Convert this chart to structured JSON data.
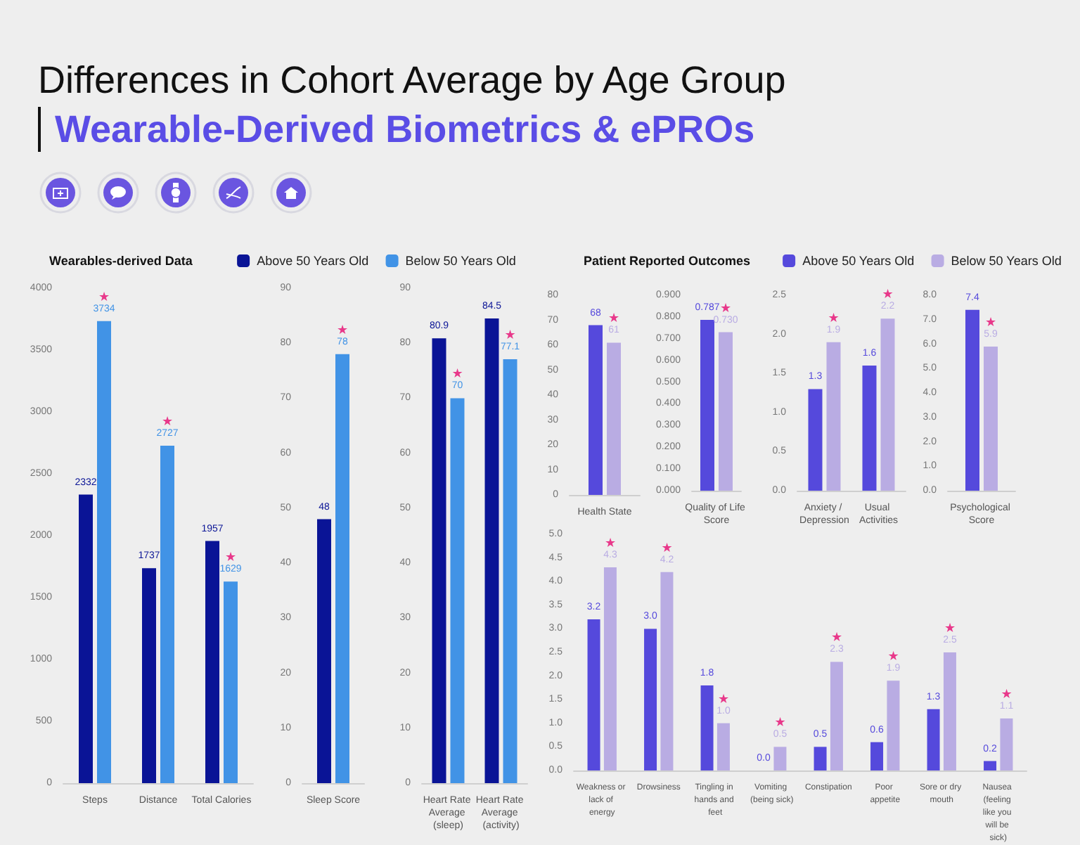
{
  "chart_data": [
    {
      "type": "bar",
      "title": "Differences in Cohort Average by Age Group",
      "subtitle": "Wearable-Derived Biometrics & ePROs",
      "legend_title": "Wearables-derived Data",
      "legend": "top right",
      "categories": [
        "Steps",
        "Distance",
        "Total Calories"
      ],
      "series": [
        {
          "name": "Above 50 Years Old",
          "color": "#0a1496",
          "values": [
            2332,
            1737,
            1957
          ]
        },
        {
          "name": "Below 50 Years Old",
          "color": "#4193e6",
          "values": [
            3734,
            2727,
            1629
          ]
        }
      ],
      "ylim": [
        0,
        4000
      ],
      "yticks": [
        0,
        500,
        1000,
        1500,
        2000,
        2500,
        3000,
        3500,
        4000
      ],
      "data_labels": true,
      "annotations": [
        {
          "text": "★",
          "x": "Steps",
          "y": 3734
        },
        {
          "text": "★",
          "x": "Distance",
          "y": 2727
        },
        {
          "text": "★",
          "x": "Total Calories",
          "y": 1629
        }
      ]
    },
    {
      "type": "bar",
      "categories": [
        "Sleep Score"
      ],
      "series": [
        {
          "color": "#0a1496",
          "values": [
            48
          ]
        },
        {
          "color": "#4193e6",
          "values": [
            78
          ]
        }
      ],
      "ylim": [
        0,
        90
      ],
      "yticks": [
        0,
        10,
        20,
        30,
        40,
        50,
        60,
        70,
        80,
        90
      ],
      "data_labels": true,
      "annotations": [
        {
          "text": "★",
          "x": "Sleep Score",
          "y": 78
        }
      ]
    },
    {
      "type": "bar",
      "categories": [
        "Heart Rate Average (sleep)",
        "Heart Rate Average (activity)"
      ],
      "series": [
        {
          "color": "#0a1496",
          "values": [
            80.9,
            84.5
          ]
        },
        {
          "color": "#4193e6",
          "values": [
            70,
            77.1
          ]
        }
      ],
      "ylim": [
        0,
        90
      ],
      "yticks": [
        0,
        10,
        20,
        30,
        40,
        50,
        60,
        70,
        80,
        90
      ],
      "data_labels": true,
      "annotations": [
        {
          "text": "★",
          "x": "Heart Rate Average (sleep)",
          "y": 70
        },
        {
          "text": "★",
          "x": "Heart Rate Average (activity)",
          "y": 77.1
        }
      ]
    },
    {
      "type": "bar",
      "legend_title": "Patient Reported Outcomes",
      "legend": "top right",
      "categories": [
        "Health State"
      ],
      "series": [
        {
          "name": "Above 50 Years Old",
          "color": "#5549dc",
          "values": [
            68
          ]
        },
        {
          "name": "Below 50 Years Old",
          "color": "#b9ace3",
          "values": [
            61
          ]
        }
      ],
      "ylim": [
        0,
        80
      ],
      "yticks": [
        0,
        10,
        20,
        30,
        40,
        50,
        60,
        70,
        80
      ],
      "data_labels": true,
      "annotations": [
        {
          "text": "★",
          "x": "Health State",
          "y": 61
        }
      ]
    },
    {
      "type": "bar",
      "categories": [
        "Quality of Life Score"
      ],
      "series": [
        {
          "color": "#5549dc",
          "values": [
            0.787
          ],
          "value_labels": [
            "0.787"
          ]
        },
        {
          "color": "#b9ace3",
          "values": [
            0.73
          ],
          "value_labels": [
            "0.730"
          ]
        }
      ],
      "ylim": [
        0,
        0.9
      ],
      "yticks": [
        {
          "value": 0,
          "label": "0.000"
        },
        {
          "value": 0.1,
          "label": "0.100"
        },
        {
          "value": 0.2,
          "label": "0.200"
        },
        {
          "value": 0.3,
          "label": "0.300"
        },
        {
          "value": 0.4,
          "label": "0.400"
        },
        {
          "value": 0.5,
          "label": "0.500"
        },
        {
          "value": 0.6,
          "label": "0.600"
        },
        {
          "value": 0.7,
          "label": "0.700"
        },
        {
          "value": 0.8,
          "label": "0.800"
        },
        {
          "value": 0.9,
          "label": "0.900"
        }
      ],
      "annotations": [
        {
          "text": "★",
          "x": "Quality of Life Score",
          "y": 0.73
        }
      ]
    },
    {
      "type": "bar",
      "categories": [
        "Anxiety / Depression",
        "Usual Activities"
      ],
      "series": [
        {
          "color": "#5549dc",
          "values": [
            1.3,
            1.6
          ],
          "value_labels": [
            "1.3",
            "1.6"
          ]
        },
        {
          "color": "#b9ace3",
          "values": [
            1.9,
            2.2
          ],
          "value_labels": [
            "1.9",
            "2.2"
          ]
        }
      ],
      "ylim": [
        0,
        2.5
      ],
      "yticks": [
        {
          "value": 0,
          "label": "0.0"
        },
        0.5,
        {
          "value": 1,
          "label": "1.0"
        },
        1.5,
        {
          "value": 2,
          "label": "2.0"
        },
        2.5
      ],
      "annotations": [
        {
          "text": "★",
          "x": "Anxiety / Depression",
          "y": 1.9
        },
        {
          "text": "★",
          "x": "Usual Activities",
          "y": 2.2
        }
      ]
    },
    {
      "type": "bar",
      "categories": [
        "Psychological Score"
      ],
      "series": [
        {
          "color": "#5549dc",
          "values": [
            7.4
          ],
          "value_labels": [
            "7.4"
          ]
        },
        {
          "color": "#b9ace3",
          "values": [
            5.9
          ],
          "value_labels": [
            "5.9"
          ]
        }
      ],
      "ylim": [
        0,
        8
      ],
      "yticks": [
        {
          "value": 0,
          "label": "0.0"
        },
        {
          "value": 1,
          "label": "1.0"
        },
        {
          "value": 2,
          "label": "2.0"
        },
        {
          "value": 3,
          "label": "3.0"
        },
        {
          "value": 4,
          "label": "4.0"
        },
        {
          "value": 5,
          "label": "5.0"
        },
        {
          "value": 6,
          "label": "6.0"
        },
        {
          "value": 7,
          "label": "7.0"
        },
        {
          "value": 8,
          "label": "8.0"
        }
      ],
      "annotations": [
        {
          "text": "★",
          "x": "Psychological Score",
          "y": 5.9
        }
      ]
    },
    {
      "type": "bar",
      "categories": [
        "Weakness or lack of energy",
        "Drowsiness",
        "Tingling in hands and feet",
        "Vomiting (being sick)",
        "Constipation",
        "Poor appetite",
        "Sore or dry mouth",
        "Nausea (feeling like you will be sick)"
      ],
      "series": [
        {
          "color": "#5549dc",
          "values": [
            3.2,
            3.0,
            1.8,
            0.0,
            0.5,
            0.6,
            1.3,
            0.2
          ],
          "value_labels": [
            "3.2",
            "3.0",
            "1.8",
            "0.0",
            "0.5",
            "0.6",
            "1.3",
            "0.2"
          ]
        },
        {
          "color": "#b9ace3",
          "values": [
            4.3,
            4.2,
            1.0,
            0.5,
            2.3,
            1.9,
            2.5,
            1.1
          ],
          "value_labels": [
            "4.3",
            "4.2",
            "1.0",
            "0.5",
            "2.3",
            "1.9",
            "2.5",
            "1.1"
          ]
        }
      ],
      "ylim": [
        0,
        5
      ],
      "yticks": [
        {
          "value": 0,
          "label": "0.0"
        },
        0.5,
        {
          "value": 1,
          "label": "1.0"
        },
        1.5,
        {
          "value": 2,
          "label": "2.0"
        },
        2.5,
        {
          "value": 3,
          "label": "3.0"
        },
        3.5,
        {
          "value": 4,
          "label": "4.0"
        },
        4.5,
        {
          "value": 5,
          "label": "5.0"
        }
      ],
      "annotations": [
        {
          "text": "★",
          "x": "Weakness or lack of energy",
          "y": 4.3
        },
        {
          "text": "★",
          "x": "Drowsiness",
          "y": 4.2
        },
        {
          "text": "★",
          "x": "Tingling in hands and feet",
          "y": 1.0
        },
        {
          "text": "★",
          "x": "Vomiting (being sick)",
          "y": 0.5
        },
        {
          "text": "★",
          "x": "Constipation",
          "y": 2.3
        },
        {
          "text": "★",
          "x": "Poor appetite",
          "y": 1.9
        },
        {
          "text": "★",
          "x": "Sore or dry mouth",
          "y": 2.5
        },
        {
          "text": "★",
          "x": "Nausea (feeling like you will be sick)",
          "y": 1.1
        }
      ]
    }
  ]
}
